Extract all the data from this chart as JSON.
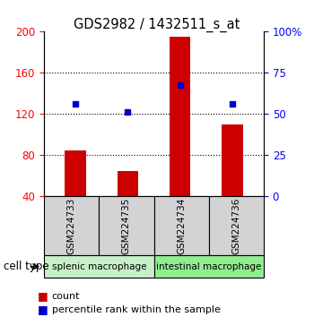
{
  "title": "GDS2982 / 1432511_s_at",
  "samples": [
    "GSM224733",
    "GSM224735",
    "GSM224734",
    "GSM224736"
  ],
  "counts": [
    85,
    65,
    195,
    110
  ],
  "percentile_ranks": [
    130,
    122,
    148,
    130
  ],
  "ylim_left": [
    40,
    200
  ],
  "ylim_right": [
    0,
    100
  ],
  "yticks_left": [
    40,
    80,
    120,
    160,
    200
  ],
  "yticks_right": [
    0,
    25,
    50,
    75,
    100
  ],
  "ytick_labels_right": [
    "0",
    "25",
    "50",
    "75",
    "100%"
  ],
  "groups": [
    {
      "label": "splenic macrophage",
      "indices": [
        0,
        1
      ],
      "color": "#c8f0c8"
    },
    {
      "label": "intestinal macrophage",
      "indices": [
        2,
        3
      ],
      "color": "#90ee90"
    }
  ],
  "bar_color": "#cc0000",
  "dot_color": "#0000cc",
  "background_color": "#ffffff",
  "bar_width": 0.4,
  "cell_type_label": "cell type"
}
